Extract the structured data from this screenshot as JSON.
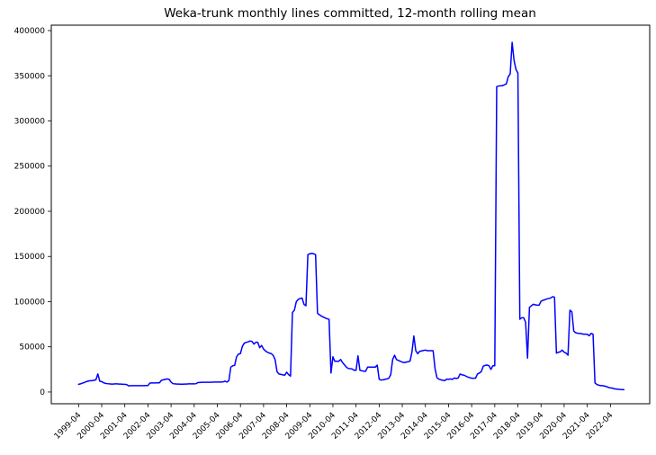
{
  "chart_data": {
    "type": "line",
    "title": "Weka-trunk monthly lines committed, 12-month rolling mean",
    "series_name": "12-month rolling mean of monthly lines committed",
    "line_color": "#0000ff",
    "background_color": "#ffffff",
    "grid": false,
    "legend_position": "none",
    "frequency": "monthly",
    "start": "1999-04",
    "end": "2022-11",
    "xlim_decimal_years": [
      1998.07,
      2023.95
    ],
    "ylim": [
      -13000,
      406000
    ],
    "x_ticks": [
      "1999-04",
      "2000-04",
      "2001-04",
      "2002-04",
      "2003-04",
      "2004-04",
      "2005-04",
      "2006-04",
      "2007-04",
      "2008-04",
      "2009-04",
      "2010-04",
      "2011-04",
      "2012-04",
      "2013-04",
      "2014-04",
      "2015-04",
      "2016-04",
      "2017-04",
      "2018-04",
      "2019-04",
      "2020-04",
      "2021-04",
      "2022-04"
    ],
    "y_ticks": [
      0,
      50000,
      100000,
      150000,
      200000,
      250000,
      300000,
      350000,
      400000
    ],
    "values": [
      8500,
      9000,
      9800,
      10500,
      11500,
      12000,
      12500,
      12500,
      13000,
      13500,
      20000,
      12000,
      11500,
      10200,
      9500,
      9200,
      9000,
      8800,
      8800,
      9000,
      9000,
      8800,
      8800,
      8500,
      8500,
      8200,
      6800,
      7000,
      7000,
      7000,
      7000,
      7000,
      7000,
      7000,
      7000,
      7200,
      7200,
      9900,
      10000,
      10000,
      10000,
      10200,
      10200,
      13000,
      13500,
      14000,
      14500,
      14000,
      11000,
      9200,
      9000,
      8800,
      8800,
      8600,
      8600,
      8800,
      8800,
      9000,
      9000,
      9000,
      9000,
      9200,
      10500,
      10500,
      10800,
      10800,
      10800,
      10800,
      10800,
      10800,
      11000,
      11000,
      11000,
      11000,
      11000,
      11200,
      12000,
      11000,
      12600,
      27500,
      29000,
      29500,
      39000,
      42000,
      42500,
      50500,
      54000,
      55000,
      55500,
      56500,
      56000,
      53000,
      55000,
      55000,
      49000,
      51500,
      47500,
      45500,
      44000,
      43000,
      42500,
      40500,
      35800,
      22500,
      20000,
      19500,
      19000,
      18600,
      21900,
      19200,
      17600,
      88000,
      90500,
      100000,
      102500,
      103500,
      104000,
      97000,
      95400,
      152000,
      153000,
      153500,
      153000,
      152000,
      87000,
      85500,
      84000,
      83000,
      82000,
      81000,
      80500,
      21000,
      39000,
      34000,
      34000,
      34000,
      36000,
      32500,
      30000,
      27500,
      26000,
      25800,
      25500,
      24100,
      24100,
      40000,
      24100,
      23500,
      23000,
      23000,
      27500,
      27500,
      27500,
      27500,
      27500,
      29800,
      14200,
      13200,
      13500,
      14000,
      14500,
      15200,
      19200,
      36000,
      40700,
      35800,
      35000,
      34000,
      33100,
      32500,
      33000,
      33500,
      34100,
      44000,
      62000,
      45700,
      42400,
      45000,
      45500,
      46000,
      46400,
      45700,
      45700,
      45700,
      45700,
      25800,
      15900,
      14200,
      13500,
      13000,
      12600,
      14200,
      14000,
      14500,
      14000,
      15500,
      15000,
      15500,
      19900,
      19000,
      18600,
      17600,
      16500,
      15900,
      15200,
      15200,
      15200,
      19900,
      21000,
      22600,
      28500,
      29500,
      29800,
      29100,
      25000,
      29100,
      29100,
      338000,
      338500,
      339000,
      339000,
      340000,
      341000,
      349000,
      352000,
      387000,
      367000,
      357000,
      353000,
      80500,
      82200,
      82200,
      77200,
      37500,
      93700,
      95400,
      97100,
      96500,
      96100,
      96100,
      100400,
      101500,
      102100,
      103000,
      103500,
      104000,
      105500,
      105000,
      43000,
      44000,
      44500,
      46400,
      44000,
      43000,
      40700,
      90500,
      88800,
      67300,
      65600,
      65000,
      64900,
      64500,
      64000,
      64000,
      63900,
      62300,
      64900,
      63900,
      10000,
      8300,
      7500,
      7000,
      7000,
      6500,
      6000,
      5000,
      4500,
      4300,
      3500,
      3300,
      3000,
      2800,
      2700,
      2500
    ]
  }
}
